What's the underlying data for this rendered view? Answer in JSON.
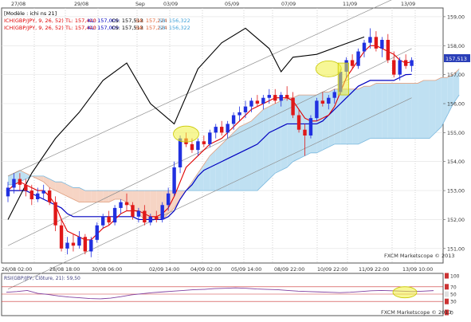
{
  "top_dates": [
    "27/08",
    "29/08",
    "Sep",
    "03/09",
    "05/09",
    "07/09",
    "11/09",
    "13/09"
  ],
  "bottom_dates": [
    "26/08 02:00",
    "28/08 18:00",
    "30/08 06:00",
    "02/09 14:00",
    "04/09 02:00",
    "05/09 14:00",
    "08/09 22:00",
    "10/09 22:00",
    "11/09 22:00",
    "13/09 10:00"
  ],
  "legend": {
    "line1": "[Modèle : ichi ns 21]",
    "line2": {
      "name": "ICH(GBP/JPY, 9, 26, 52)",
      "items": [
        {
          "text": "TL: 157,440",
          "color": "#e00000"
        },
        {
          "text": "KL: 157,009",
          "color": "#0000c0"
        },
        {
          "text": "CS: 157,513",
          "color": "#000000"
        },
        {
          "text": "SA: 157,224",
          "color": "#e06030"
        },
        {
          "text": "SB: 156,322",
          "color": "#3fa0d8"
        }
      ]
    },
    "line3": {
      "name": "ICH(GBP/JPY, 9, 26, 52)",
      "items": [
        {
          "text": "TL: 157,440",
          "color": "#e00000"
        },
        {
          "text": "KL: 157,009",
          "color": "#0000c0"
        },
        {
          "text": "CS: 157,513",
          "color": "#000000"
        },
        {
          "text": "SA: 157,224",
          "color": "#e06030"
        },
        {
          "text": "SB: 156,322",
          "color": "#3fa0d8"
        }
      ]
    }
  },
  "price_badge": "157,513",
  "watermark": "FXCM Marketscope © 2013",
  "rsi": {
    "label": "RSI(GBP/JPY, Clôture, 21): 59,50",
    "ticks": [
      "100",
      "70",
      "50",
      "30",
      "0"
    ],
    "value": 59.5,
    "watermark": "FXCM Marketscope © 2013"
  },
  "colors": {
    "bull": "#2030e0",
    "bear": "#e01818",
    "tenkan": "#e00000",
    "kijun": "#0000c0",
    "chikou": "#000000",
    "kumo_bull": "#bfe0f2",
    "kumo_bear": "#f6d4c4",
    "highlight": "#f0f040"
  },
  "chart_data": {
    "type": "candlestick",
    "title": "",
    "ylim": [
      150.5,
      159.3
    ],
    "y_ticks": [
      "159,00",
      "158,00",
      "157,00",
      "156,00",
      "155,00",
      "154,00",
      "153,00",
      "152,00",
      "151,00"
    ],
    "candles": [
      [
        152.8,
        153.3,
        152.6,
        153.1
      ],
      [
        153.1,
        153.6,
        152.9,
        153.4
      ],
      [
        153.4,
        153.6,
        153.0,
        153.2
      ],
      [
        153.2,
        153.4,
        152.8,
        153.0
      ],
      [
        153.0,
        153.2,
        152.5,
        152.7
      ],
      [
        152.7,
        153.1,
        152.6,
        152.9
      ],
      [
        152.9,
        153.2,
        152.7,
        153.0
      ],
      [
        153.0,
        153.1,
        152.5,
        152.6
      ],
      [
        152.6,
        152.8,
        151.6,
        151.8
      ],
      [
        151.8,
        152.0,
        150.9,
        151.0
      ],
      [
        151.0,
        151.4,
        150.8,
        151.2
      ],
      [
        151.2,
        151.5,
        150.9,
        151.1
      ],
      [
        151.1,
        151.6,
        151.0,
        151.4
      ],
      [
        151.4,
        151.5,
        150.8,
        150.9
      ],
      [
        150.9,
        151.4,
        150.7,
        151.3
      ],
      [
        151.3,
        151.9,
        151.2,
        151.8
      ],
      [
        151.8,
        152.2,
        151.7,
        152.1
      ],
      [
        152.1,
        152.3,
        151.8,
        151.9
      ],
      [
        151.9,
        152.5,
        151.8,
        152.4
      ],
      [
        152.4,
        152.7,
        152.2,
        152.6
      ],
      [
        152.6,
        152.9,
        152.3,
        152.5
      ],
      [
        152.5,
        152.6,
        152.0,
        152.1
      ],
      [
        152.1,
        152.4,
        151.9,
        152.3
      ],
      [
        152.3,
        152.5,
        151.8,
        151.9
      ],
      [
        151.9,
        152.2,
        151.8,
        152.1
      ],
      [
        152.1,
        152.3,
        151.9,
        152.0
      ],
      [
        152.0,
        152.6,
        151.9,
        152.5
      ],
      [
        152.5,
        153.1,
        152.3,
        152.9
      ],
      [
        152.9,
        154.0,
        152.8,
        153.8
      ],
      [
        153.8,
        154.9,
        153.6,
        154.8
      ],
      [
        154.8,
        155.0,
        154.5,
        154.6
      ],
      [
        154.6,
        154.8,
        154.3,
        154.4
      ],
      [
        154.4,
        154.8,
        154.2,
        154.7
      ],
      [
        154.7,
        154.9,
        154.5,
        154.6
      ],
      [
        154.6,
        155.1,
        154.5,
        155.0
      ],
      [
        155.0,
        155.3,
        154.8,
        155.2
      ],
      [
        155.2,
        155.4,
        154.9,
        155.0
      ],
      [
        155.0,
        155.4,
        154.8,
        155.3
      ],
      [
        155.3,
        155.7,
        155.1,
        155.6
      ],
      [
        155.6,
        155.9,
        155.4,
        155.7
      ],
      [
        155.7,
        156.1,
        155.5,
        155.9
      ],
      [
        155.9,
        156.2,
        155.7,
        156.1
      ],
      [
        156.1,
        156.3,
        155.9,
        156.0
      ],
      [
        156.0,
        156.3,
        155.8,
        156.2
      ],
      [
        156.2,
        156.5,
        156.0,
        156.3
      ],
      [
        156.3,
        156.5,
        156.0,
        156.1
      ],
      [
        156.1,
        156.4,
        155.9,
        156.3
      ],
      [
        156.3,
        156.6,
        156.1,
        156.2
      ],
      [
        156.2,
        156.4,
        155.5,
        155.6
      ],
      [
        155.6,
        155.8,
        155.0,
        155.1
      ],
      [
        155.1,
        155.3,
        154.2,
        154.9
      ],
      [
        154.9,
        155.6,
        154.8,
        155.5
      ],
      [
        155.5,
        156.2,
        155.4,
        156.1
      ],
      [
        156.1,
        156.4,
        155.9,
        156.0
      ],
      [
        156.0,
        156.3,
        155.8,
        156.2
      ],
      [
        156.2,
        156.5,
        156.0,
        156.4
      ],
      [
        156.4,
        157.2,
        156.3,
        157.1
      ],
      [
        157.1,
        157.6,
        156.9,
        157.5
      ],
      [
        157.5,
        157.7,
        157.2,
        157.3
      ],
      [
        157.3,
        157.9,
        157.2,
        157.8
      ],
      [
        157.8,
        158.2,
        157.6,
        158.1
      ],
      [
        158.1,
        158.6,
        157.9,
        158.3
      ],
      [
        158.3,
        158.5,
        157.8,
        157.9
      ],
      [
        157.9,
        158.3,
        157.6,
        158.2
      ],
      [
        158.2,
        158.4,
        157.4,
        157.5
      ],
      [
        157.5,
        157.8,
        156.9,
        157.0
      ],
      [
        157.0,
        157.6,
        156.8,
        157.5
      ],
      [
        157.5,
        157.7,
        157.2,
        157.3
      ],
      [
        157.3,
        157.6,
        157.1,
        157.5
      ]
    ],
    "tenkan": [
      153.0,
      153.2,
      153.3,
      153.2,
      153.1,
      153.0,
      153.0,
      152.8,
      152.5,
      152.0,
      151.6,
      151.5,
      151.4,
      151.3,
      151.3,
      151.5,
      151.7,
      151.8,
      152.0,
      152.2,
      152.3,
      152.3,
      152.3,
      152.2,
      152.1,
      152.1,
      152.2,
      152.4,
      152.8,
      153.3,
      153.8,
      154.0,
      154.2,
      154.4,
      154.6,
      154.7,
      154.8,
      155.0,
      155.2,
      155.4,
      155.6,
      155.8,
      155.9,
      156.0,
      156.1,
      156.2,
      156.2,
      156.2,
      156.1,
      155.8,
      155.5,
      155.4,
      155.4,
      155.5,
      155.6,
      155.9,
      156.4,
      156.9,
      157.2,
      157.5,
      157.8,
      158.0,
      158.0,
      157.9,
      157.8,
      157.7,
      157.5,
      157.4,
      157.44
    ],
    "kijun": [
      153.0,
      153.0,
      153.0,
      153.0,
      152.9,
      152.8,
      152.7,
      152.6,
      152.5,
      152.4,
      152.2,
      152.1,
      152.1,
      152.1,
      152.1,
      152.1,
      152.1,
      152.1,
      152.1,
      152.1,
      152.1,
      152.1,
      152.0,
      152.0,
      152.0,
      152.0,
      152.0,
      152.1,
      152.3,
      152.7,
      153.0,
      153.2,
      153.5,
      153.7,
      153.8,
      153.9,
      154.0,
      154.1,
      154.2,
      154.3,
      154.4,
      154.5,
      154.6,
      154.8,
      155.0,
      155.1,
      155.2,
      155.3,
      155.3,
      155.3,
      155.3,
      155.3,
      155.3,
      155.4,
      155.6,
      155.8,
      156.0,
      156.2,
      156.4,
      156.6,
      156.7,
      156.8,
      156.8,
      156.8,
      156.8,
      156.8,
      156.9,
      157.0,
      157.009
    ],
    "chikou_x": [
      0,
      4,
      8,
      12,
      16,
      20,
      24,
      28,
      32,
      36,
      40,
      44,
      46,
      48,
      52,
      56,
      60
    ],
    "chikou": [
      152.0,
      153.6,
      154.8,
      155.7,
      156.8,
      157.4,
      156.0,
      155.3,
      157.2,
      158.1,
      158.6,
      157.9,
      157.1,
      157.6,
      157.7,
      158.0,
      158.3
    ],
    "senkou_a": [
      153.5,
      153.6,
      153.7,
      153.6,
      153.5,
      153.4,
      153.3,
      153.1,
      153.0,
      152.9,
      152.8,
      152.7,
      152.6,
      152.6,
      152.6,
      152.6,
      152.6,
      152.6,
      152.7,
      152.7,
      152.6,
      152.4,
      152.2,
      152.0,
      152.0,
      152.0,
      152.0,
      152.2,
      152.4,
      152.7,
      153.0,
      153.3,
      153.6,
      153.9,
      154.2,
      154.4,
      154.6,
      154.8,
      155.0,
      155.2,
      155.3,
      155.4,
      155.6,
      155.8,
      155.9,
      156.0,
      156.1,
      156.2,
      156.2,
      156.3,
      156.3,
      156.3,
      156.3,
      156.4,
      156.4,
      156.5,
      156.5,
      156.5,
      156.5,
      156.5,
      156.6,
      156.6,
      156.7,
      156.7,
      156.7,
      156.7,
      156.7,
      156.7,
      156.7,
      156.7,
      156.8,
      156.8,
      156.8,
      156.9,
      156.9,
      157.0,
      157.2
    ],
    "senkou_b": [
      153.2,
      153.2,
      153.3,
      153.4,
      153.5,
      153.5,
      153.5,
      153.4,
      153.3,
      153.3,
      153.2,
      153.1,
      153.1,
      153.0,
      153.0,
      153.0,
      153.0,
      153.0,
      153.0,
      153.0,
      153.0,
      153.0,
      153.0,
      153.0,
      153.0,
      153.0,
      153.0,
      153.0,
      153.0,
      153.0,
      153.0,
      153.0,
      153.0,
      153.0,
      153.0,
      153.0,
      153.0,
      153.0,
      153.0,
      153.0,
      153.0,
      153.0,
      153.0,
      153.2,
      153.4,
      153.6,
      153.7,
      153.8,
      154.0,
      154.1,
      154.2,
      154.3,
      154.3,
      154.4,
      154.5,
      154.6,
      154.6,
      154.6,
      154.6,
      154.6,
      154.7,
      154.8,
      154.8,
      154.8,
      154.8,
      154.8,
      154.8,
      154.8,
      154.8,
      154.8,
      154.8,
      154.8,
      155.0,
      155.2,
      155.6,
      156.0,
      156.3
    ],
    "channel": {
      "lower": [
        [
          0,
          149.6
        ],
        [
          68,
          156.2
        ]
      ],
      "upper": [
        [
          0,
          153.5
        ],
        [
          68,
          159.9
        ]
      ],
      "mid": [
        [
          0,
          151.1
        ],
        [
          68,
          157.9
        ]
      ]
    },
    "highlights": [
      {
        "x": 30,
        "y": 154.95
      },
      {
        "x": 54,
        "y": 157.2
      }
    ],
    "rect_highlight": {
      "x": [
        56,
        57
      ],
      "y": [
        156.3,
        157.4
      ]
    },
    "rsi_series": [
      55,
      57,
      60,
      52,
      49,
      45,
      42,
      40,
      38,
      37,
      39,
      43,
      48,
      51,
      54,
      56,
      58,
      60,
      62,
      63,
      65,
      66,
      67,
      66,
      64,
      63,
      62,
      60,
      58,
      57,
      56,
      55,
      54,
      55,
      57,
      59,
      60,
      59,
      58,
      57,
      58,
      59.5
    ]
  }
}
